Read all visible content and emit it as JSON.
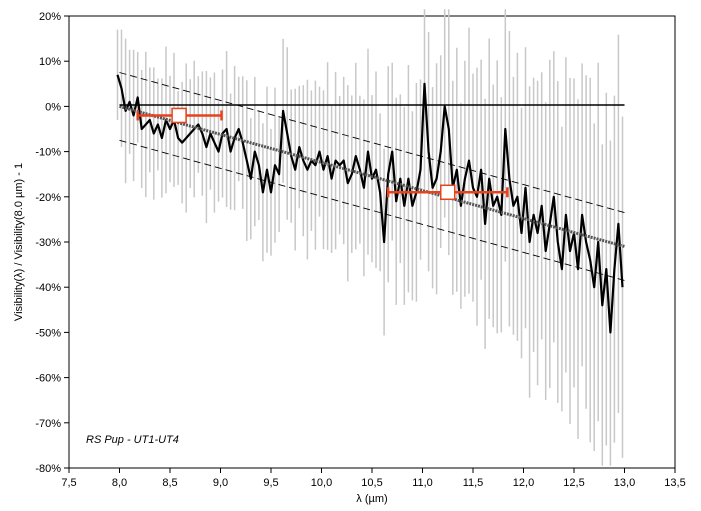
{
  "chart_data": {
    "type": "line",
    "title": "",
    "xlabel": "λ (µm)",
    "ylabel": "Visibility(λ) / Visibility(8.0 µm) - 1",
    "annotation": "RS Pup - UT1-UT4",
    "xlim": [
      7.5,
      13.5
    ],
    "ylim": [
      -80,
      20
    ],
    "x_ticks": [
      7.5,
      8.0,
      8.5,
      9.0,
      9.5,
      10.0,
      10.5,
      11.0,
      11.5,
      12.0,
      12.5,
      13.0,
      13.5
    ],
    "x_tick_labels": [
      "7,5",
      "8,0",
      "8,5",
      "9,0",
      "9,5",
      "10,0",
      "10,5",
      "11,0",
      "11,5",
      "12,0",
      "12,5",
      "13,0",
      "13,5"
    ],
    "y_ticks": [
      -80,
      -70,
      -60,
      -50,
      -40,
      -30,
      -20,
      -10,
      0,
      10,
      20
    ],
    "y_tick_labels": [
      "-80%",
      "-70%",
      "-60%",
      "-50%",
      "-40%",
      "-30%",
      "-20%",
      "-10%",
      "0%",
      "10%",
      "20%"
    ],
    "grid": false,
    "legend": "none",
    "colors": {
      "data": "#000000",
      "errorbar": "#c8c8c8",
      "fit": "#555555",
      "bounds": "#000000",
      "reference": "#000000",
      "binned": "#e8421c"
    },
    "series": [
      {
        "values": [
          [
            7.98,
            7
          ],
          [
            8.02,
            4
          ],
          [
            8.06,
            -1
          ],
          [
            8.1,
            1
          ],
          [
            8.14,
            -2
          ],
          [
            8.18,
            2
          ],
          [
            8.22,
            -5
          ],
          [
            8.26,
            -4
          ],
          [
            8.3,
            -3
          ],
          [
            8.34,
            -6
          ],
          [
            8.38,
            -4
          ],
          [
            8.42,
            -7
          ],
          [
            8.46,
            -3
          ],
          [
            8.5,
            -5
          ],
          [
            8.54,
            -3
          ],
          [
            8.58,
            -7
          ],
          [
            8.62,
            -8
          ],
          [
            8.66,
            -7
          ],
          [
            8.7,
            -6
          ],
          [
            8.74,
            -5
          ],
          [
            8.78,
            -4
          ],
          [
            8.82,
            -6
          ],
          [
            8.86,
            -9
          ],
          [
            8.9,
            -6
          ],
          [
            8.94,
            -8
          ],
          [
            8.98,
            -10
          ],
          [
            9.02,
            -6
          ],
          [
            9.06,
            -5
          ],
          [
            9.1,
            -10
          ],
          [
            9.14,
            -7
          ],
          [
            9.18,
            -5
          ],
          [
            9.22,
            -8
          ],
          [
            9.26,
            -12
          ],
          [
            9.3,
            -16
          ],
          [
            9.34,
            -10
          ],
          [
            9.38,
            -13
          ],
          [
            9.42,
            -19
          ],
          [
            9.46,
            -14
          ],
          [
            9.5,
            -19
          ],
          [
            9.54,
            -13
          ],
          [
            9.58,
            -15
          ],
          [
            9.62,
            -1
          ],
          [
            9.66,
            -6
          ],
          [
            9.7,
            -11
          ],
          [
            9.74,
            -14
          ],
          [
            9.78,
            -9
          ],
          [
            9.82,
            -12
          ],
          [
            9.86,
            -14
          ],
          [
            9.9,
            -12
          ],
          [
            9.94,
            -13
          ],
          [
            9.98,
            -10
          ],
          [
            10.02,
            -14
          ],
          [
            10.06,
            -11
          ],
          [
            10.1,
            -16
          ],
          [
            10.14,
            -12
          ],
          [
            10.18,
            -13
          ],
          [
            10.22,
            -12
          ],
          [
            10.26,
            -17
          ],
          [
            10.3,
            -15
          ],
          [
            10.34,
            -11
          ],
          [
            10.38,
            -14
          ],
          [
            10.42,
            -18
          ],
          [
            10.46,
            -10
          ],
          [
            10.5,
            -16
          ],
          [
            10.54,
            -14
          ],
          [
            10.58,
            -19
          ],
          [
            10.62,
            -30
          ],
          [
            10.66,
            -15
          ],
          [
            10.7,
            -10
          ],
          [
            10.74,
            -21
          ],
          [
            10.78,
            -16
          ],
          [
            10.82,
            -22
          ],
          [
            10.86,
            -16
          ],
          [
            10.9,
            -22
          ],
          [
            10.94,
            -19
          ],
          [
            10.98,
            -14
          ],
          [
            11.02,
            5
          ],
          [
            11.06,
            -10
          ],
          [
            11.1,
            -18
          ],
          [
            11.14,
            -16
          ],
          [
            11.18,
            -10
          ],
          [
            11.22,
            0
          ],
          [
            11.26,
            -5
          ],
          [
            11.3,
            -18
          ],
          [
            11.34,
            -14
          ],
          [
            11.38,
            -22
          ],
          [
            11.42,
            -16
          ],
          [
            11.46,
            -12
          ],
          [
            11.5,
            -18
          ],
          [
            11.54,
            -20
          ],
          [
            11.58,
            -14
          ],
          [
            11.62,
            -26
          ],
          [
            11.66,
            -16
          ],
          [
            11.7,
            -22
          ],
          [
            11.74,
            -20
          ],
          [
            11.78,
            -24
          ],
          [
            11.82,
            -5
          ],
          [
            11.86,
            -16
          ],
          [
            11.9,
            -22
          ],
          [
            11.94,
            -20
          ],
          [
            11.98,
            -28
          ],
          [
            12.02,
            -18
          ],
          [
            12.06,
            -30
          ],
          [
            12.1,
            -24
          ],
          [
            12.14,
            -28
          ],
          [
            12.18,
            -22
          ],
          [
            12.22,
            -32
          ],
          [
            12.26,
            -26
          ],
          [
            12.3,
            -20
          ],
          [
            12.34,
            -30
          ],
          [
            12.38,
            -36
          ],
          [
            12.42,
            -24
          ],
          [
            12.46,
            -32
          ],
          [
            12.5,
            -28
          ],
          [
            12.54,
            -36
          ],
          [
            12.58,
            -24
          ],
          [
            12.62,
            -30
          ],
          [
            12.66,
            -34
          ],
          [
            12.7,
            -40
          ],
          [
            12.74,
            -30
          ],
          [
            12.78,
            -44
          ],
          [
            12.82,
            -36
          ],
          [
            12.86,
            -50
          ],
          [
            12.9,
            -36
          ],
          [
            12.94,
            -26
          ],
          [
            12.98,
            -40
          ]
        ]
      },
      {
        "values": [
          [
            8.0,
            0
          ],
          [
            13.0,
            -31
          ]
        ]
      },
      {
        "values": [
          [
            8.0,
            -7.5
          ],
          [
            13.0,
            -38.5
          ]
        ]
      },
      {
        "values": [
          [
            8.0,
            7.5
          ],
          [
            13.0,
            -23.5
          ]
        ]
      },
      {
        "values": [
          [
            8.0,
            0.3
          ],
          [
            13.0,
            0.3
          ]
        ]
      }
    ],
    "binned_points": [
      {
        "x": 8.59,
        "y": -2,
        "x_low": 8.18,
        "x_high": 9.01
      },
      {
        "x": 11.25,
        "y": -19,
        "x_low": 10.66,
        "x_high": 11.84
      }
    ]
  }
}
